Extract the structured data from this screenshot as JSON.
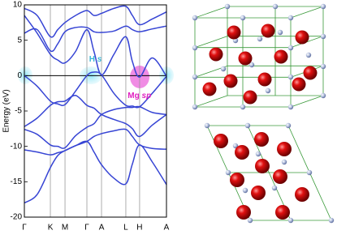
{
  "chart_data": {
    "type": "line",
    "ylabel": "Energy (eV)",
    "xlim": [
      0,
      1
    ],
    "xticks": [
      {
        "value": 0,
        "label": "Γ"
      },
      {
        "value": 0.183,
        "label": "K"
      },
      {
        "value": 0.286,
        "label": "M"
      },
      {
        "value": 0.44,
        "label": "Γ"
      },
      {
        "value": 0.543,
        "label": "A"
      },
      {
        "value": 0.714,
        "label": "L"
      },
      {
        "value": 0.811,
        "label": "H"
      },
      {
        "value": 1,
        "label": "A"
      }
    ],
    "ylim": [
      -20,
      10
    ],
    "yticks": [
      -20,
      -15,
      -10,
      -5,
      0,
      5,
      10
    ],
    "grid": true,
    "x": [
      0,
      0.09,
      0.183,
      0.235,
      0.286,
      0.36,
      0.44,
      0.49,
      0.543,
      0.63,
      0.714,
      0.76,
      0.811,
      0.9,
      1
    ],
    "series": [
      {
        "color": "#3644d4",
        "values": [
          -18,
          -16.8,
          -13,
          -11.3,
          -10.6,
          -9.9,
          -9.3,
          -10.8,
          -12.6,
          -14.5,
          -15.3,
          -12.5,
          -9.8,
          -12.2,
          -15.4
        ]
      },
      {
        "color": "#3644d4",
        "values": [
          -10.5,
          -10.8,
          -11.2,
          -10.9,
          -10.6,
          -9.9,
          -9.3,
          -8.6,
          -8.2,
          -7.8,
          -7.6,
          -8.6,
          -9.8,
          -10.3,
          -10.4
        ]
      },
      {
        "color": "#3644d4",
        "values": [
          -7.6,
          -8.3,
          -9.8,
          -10,
          -10.2,
          -8.5,
          -7.3,
          -6.8,
          -5.5,
          -4.8,
          -4.5,
          -4.5,
          -4.4,
          -5.2,
          -5.5
        ]
      },
      {
        "color": "#3644d4",
        "values": [
          -7.2,
          -6,
          -4.2,
          -3.7,
          -3.6,
          -2.8,
          -4.2,
          -4.6,
          -5.5,
          -6.2,
          -6.8,
          -7.5,
          -8.6,
          -7,
          -5.5
        ]
      },
      {
        "color": "#3644d4",
        "values": [
          0,
          -1.5,
          -3.6,
          -4,
          -4.1,
          -2.2,
          0,
          0.5,
          0.1,
          -2.5,
          -4.2,
          -4.3,
          -4.4,
          -2.5,
          -0.1
        ]
      },
      {
        "color": "#3644d4",
        "values": [
          8.5,
          6,
          3,
          2.2,
          1.8,
          3.4,
          6.5,
          3.4,
          0.1,
          3,
          5.5,
          2,
          -0.2,
          2.5,
          -0.1
        ]
      },
      {
        "color": "#3644d4",
        "values": [
          6,
          6.5,
          3.5,
          4.5,
          6.2,
          6.8,
          6.8,
          6.2,
          6.1,
          6.3,
          7,
          6.5,
          6.2,
          6.6,
          7
        ]
      },
      {
        "color": "#3644d4",
        "values": [
          9.5,
          8.5,
          5.5,
          6.5,
          7.5,
          8.5,
          9.2,
          8.5,
          8.8,
          9.5,
          9.8,
          8.5,
          7.2,
          8,
          9
        ]
      }
    ],
    "annotations": [
      {
        "element": "H",
        "orbital": "s",
        "color": "#3ab8d8",
        "x": 0.5,
        "y": 2.3
      },
      {
        "element": "Mg",
        "orbital": "sp",
        "color": "#e020c0",
        "x": 0.81,
        "y": -2.8
      }
    ]
  }
}
